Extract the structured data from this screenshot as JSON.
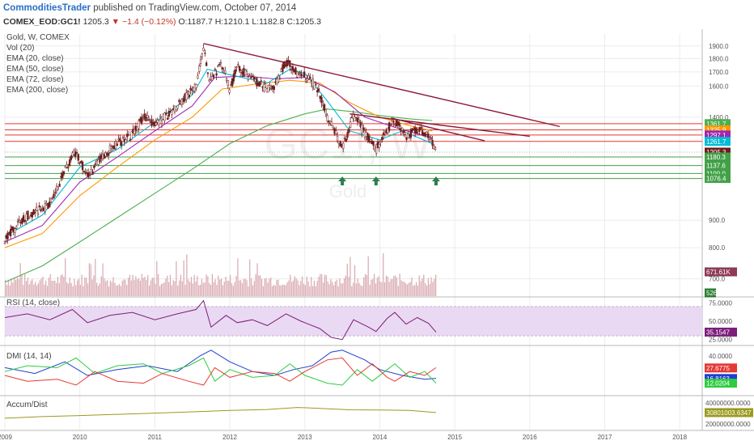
{
  "header": {
    "author": "CommoditiesTrader",
    "published": " published on TradingView.com, October 07, 2014",
    "symbol": "COMEX_EOD:GC1!",
    "last": "1205.3",
    "change": "−1.4 (−0.12%)",
    "open": "O:1187.7",
    "high": "H:1210.1",
    "low": "L:1182.8",
    "close": "C:1205.3"
  },
  "watermark": {
    "big": "GC1!, W",
    "small": "Gold"
  },
  "main_legend": [
    "Gold, W, COMEX",
    "Vol (20)",
    "EMA (20, close)",
    "EMA (50, close)",
    "EMA (72, close)",
    "EMA (200, close)"
  ],
  "rsi_legend": "RSI (14, close)",
  "dmi_legend": "DMI (14, 14)",
  "ad_legend": "Accum/Dist",
  "colors": {
    "candle": "#6b1d1d",
    "ema20": "#00bcd4",
    "ema50": "#9c27b0",
    "ema72": "#ff9800",
    "ema200": "#4caf50",
    "trendline": "#8b1a3a",
    "resistance": "#e53935",
    "support": "#43a047",
    "volume": "#d8a8b0",
    "rsi": "#7b1f7b",
    "rsi_band": "#ead9f2",
    "dmi_plus": "#2ecc40",
    "dmi_minus": "#e53935",
    "adx": "#1e3fd0",
    "accum": "#9a9a20",
    "arrow": "#2e7d4f"
  },
  "chart_data": [
    {
      "type": "candlestick",
      "title": "Gold, W, COMEX",
      "x_ticks": [
        "2009",
        "2010",
        "2011",
        "2012",
        "2013",
        "2014",
        "2015",
        "2016",
        "2017",
        "2018"
      ],
      "x_range": [
        2009.0,
        2018.3
      ],
      "y_ticks": [
        "1900.0",
        "1800.0",
        "1700.0",
        "1600.0",
        "1400.0",
        "900.0",
        "800.0",
        "700.0"
      ],
      "y_scale": "log",
      "y_range": [
        650,
        2000
      ],
      "price_path": [
        [
          2009.0,
          830
        ],
        [
          2009.3,
          920
        ],
        [
          2009.6,
          960
        ],
        [
          2009.8,
          1110
        ],
        [
          2009.95,
          1210
        ],
        [
          2010.1,
          1080
        ],
        [
          2010.3,
          1180
        ],
        [
          2010.5,
          1250
        ],
        [
          2010.7,
          1300
        ],
        [
          2010.85,
          1400
        ],
        [
          2011.0,
          1360
        ],
        [
          2011.2,
          1420
        ],
        [
          2011.4,
          1520
        ],
        [
          2011.55,
          1600
        ],
        [
          2011.65,
          1880
        ],
        [
          2011.72,
          1640
        ],
        [
          2011.9,
          1750
        ],
        [
          2012.0,
          1580
        ],
        [
          2012.1,
          1740
        ],
        [
          2012.3,
          1650
        ],
        [
          2012.5,
          1580
        ],
        [
          2012.6,
          1600
        ],
        [
          2012.75,
          1780
        ],
        [
          2012.9,
          1690
        ],
        [
          2013.0,
          1670
        ],
        [
          2013.15,
          1600
        ],
        [
          2013.3,
          1400
        ],
        [
          2013.5,
          1220
        ],
        [
          2013.65,
          1410
        ],
        [
          2013.8,
          1310
        ],
        [
          2013.95,
          1220
        ],
        [
          2014.1,
          1330
        ],
        [
          2014.2,
          1380
        ],
        [
          2014.35,
          1290
        ],
        [
          2014.5,
          1330
        ],
        [
          2014.65,
          1290
        ],
        [
          2014.75,
          1205
        ]
      ],
      "ema20": [
        [
          2009.0,
          840
        ],
        [
          2009.5,
          920
        ],
        [
          2010.0,
          1130
        ],
        [
          2010.5,
          1220
        ],
        [
          2011.0,
          1370
        ],
        [
          2011.5,
          1540
        ],
        [
          2011.7,
          1720
        ],
        [
          2012.0,
          1680
        ],
        [
          2012.5,
          1620
        ],
        [
          2012.8,
          1720
        ],
        [
          2013.0,
          1690
        ],
        [
          2013.3,
          1500
        ],
        [
          2013.6,
          1320
        ],
        [
          2014.0,
          1270
        ],
        [
          2014.3,
          1320
        ],
        [
          2014.7,
          1250
        ]
      ],
      "ema50": [
        [
          2009.0,
          820
        ],
        [
          2009.5,
          880
        ],
        [
          2010.0,
          1060
        ],
        [
          2010.5,
          1180
        ],
        [
          2011.0,
          1320
        ],
        [
          2011.5,
          1470
        ],
        [
          2011.8,
          1660
        ],
        [
          2012.2,
          1670
        ],
        [
          2012.6,
          1650
        ],
        [
          2013.0,
          1660
        ],
        [
          2013.4,
          1560
        ],
        [
          2013.8,
          1400
        ],
        [
          2014.2,
          1340
        ],
        [
          2014.7,
          1280
        ]
      ],
      "ema72": [
        [
          2009.0,
          800
        ],
        [
          2009.5,
          850
        ],
        [
          2010.0,
          1000
        ],
        [
          2010.5,
          1130
        ],
        [
          2011.0,
          1270
        ],
        [
          2011.5,
          1400
        ],
        [
          2011.9,
          1580
        ],
        [
          2012.3,
          1610
        ],
        [
          2012.8,
          1640
        ],
        [
          2013.2,
          1620
        ],
        [
          2013.6,
          1490
        ],
        [
          2014.0,
          1400
        ],
        [
          2014.4,
          1350
        ],
        [
          2014.7,
          1320
        ]
      ],
      "ema200": [
        [
          2009.0,
          690
        ],
        [
          2009.5,
          740
        ],
        [
          2010.0,
          820
        ],
        [
          2010.5,
          910
        ],
        [
          2011.0,
          1010
        ],
        [
          2011.5,
          1120
        ],
        [
          2012.0,
          1250
        ],
        [
          2012.5,
          1350
        ],
        [
          2013.0,
          1420
        ],
        [
          2013.3,
          1450
        ],
        [
          2013.7,
          1430
        ],
        [
          2014.0,
          1410
        ],
        [
          2014.4,
          1390
        ],
        [
          2014.7,
          1380
        ]
      ],
      "trendlines": [
        [
          [
            2011.65,
            1920
          ],
          [
            2016.4,
            1345
          ]
        ],
        [
          [
            2013.6,
            1420
          ],
          [
            2016.0,
            1290
          ]
        ],
        [
          [
            2014.15,
            1395
          ],
          [
            2015.4,
            1265
          ]
        ]
      ],
      "resistance_lines": [
        1361.7,
        1325.9,
        1297.1,
        1261.7
      ],
      "support_lines": [
        1180.3,
        1137.6,
        1100.0,
        1076.4
      ],
      "price_tags": [
        {
          "label": "1361.7",
          "value": 1361.7,
          "color": "#4caf50"
        },
        {
          "label": "1325.9",
          "value": 1325.9,
          "color": "#ff9800"
        },
        {
          "label": "1297.1",
          "value": 1297.1,
          "color": "#9c27b0"
        },
        {
          "label": "1261.7",
          "value": 1261.7,
          "color": "#00bcd4"
        },
        {
          "label": "1205.3",
          "value": 1205.3,
          "color": "#6b1d1d"
        },
        {
          "label": "1180.3",
          "value": 1180.3,
          "color": "#43a047"
        },
        {
          "label": "1137.6",
          "value": 1137.6,
          "color": "#43a047"
        },
        {
          "label": "1100.0",
          "value": 1100.0,
          "color": "#43a047"
        },
        {
          "label": "1076.4",
          "value": 1076.4,
          "color": "#43a047"
        }
      ],
      "support_arrows": [
        2013.5,
        2013.95,
        2014.75
      ],
      "volume_label": "671.61K",
      "volume_scale_label": "526"
    },
    {
      "type": "line",
      "title": "RSI (14, close)",
      "y_ticks": [
        "75.0000",
        "50.0000",
        "25.0000"
      ],
      "y_range": [
        18,
        82
      ],
      "band": [
        30,
        70
      ],
      "last_label": "35.1547",
      "series": [
        {
          "points": [
            [
              2009.0,
              55
            ],
            [
              2009.3,
              60
            ],
            [
              2009.6,
              52
            ],
            [
              2009.9,
              66
            ],
            [
              2010.1,
              48
            ],
            [
              2010.4,
              58
            ],
            [
              2010.7,
              62
            ],
            [
              2011.0,
              52
            ],
            [
              2011.3,
              60
            ],
            [
              2011.55,
              66
            ],
            [
              2011.65,
              78
            ],
            [
              2011.75,
              42
            ],
            [
              2011.95,
              58
            ],
            [
              2012.1,
              48
            ],
            [
              2012.3,
              52
            ],
            [
              2012.5,
              44
            ],
            [
              2012.75,
              60
            ],
            [
              2012.95,
              50
            ],
            [
              2013.2,
              40
            ],
            [
              2013.35,
              28
            ],
            [
              2013.5,
              25
            ],
            [
              2013.65,
              52
            ],
            [
              2013.85,
              42
            ],
            [
              2013.95,
              36
            ],
            [
              2014.1,
              54
            ],
            [
              2014.2,
              62
            ],
            [
              2014.35,
              46
            ],
            [
              2014.5,
              55
            ],
            [
              2014.65,
              47
            ],
            [
              2014.75,
              35
            ]
          ]
        }
      ]
    },
    {
      "type": "line",
      "title": "DMI (14, 14)",
      "y_ticks": [
        "40.0000"
      ],
      "y_range": [
        0,
        50
      ],
      "last_labels": [
        "27.6775",
        "16.8163",
        "12.0204"
      ],
      "series": [
        {
          "points": [
            [
              2009.0,
              28
            ],
            [
              2009.4,
              22
            ],
            [
              2009.8,
              34
            ],
            [
              2010.1,
              20
            ],
            [
              2010.5,
              26
            ],
            [
              2010.9,
              30
            ],
            [
              2011.3,
              24
            ],
            [
              2011.6,
              40
            ],
            [
              2011.75,
              46
            ],
            [
              2012.0,
              34
            ],
            [
              2012.3,
              24
            ],
            [
              2012.6,
              20
            ],
            [
              2012.85,
              26
            ],
            [
              2013.1,
              30
            ],
            [
              2013.35,
              44
            ],
            [
              2013.5,
              46
            ],
            [
              2013.8,
              36
            ],
            [
              2014.0,
              26
            ],
            [
              2014.3,
              20
            ],
            [
              2014.6,
              16
            ],
            [
              2014.75,
              17
            ]
          ]
        },
        {
          "points": [
            [
              2009.0,
              24
            ],
            [
              2009.3,
              30
            ],
            [
              2009.7,
              28
            ],
            [
              2009.95,
              38
            ],
            [
              2010.2,
              22
            ],
            [
              2010.5,
              30
            ],
            [
              2010.85,
              32
            ],
            [
              2011.1,
              22
            ],
            [
              2011.45,
              30
            ],
            [
              2011.65,
              38
            ],
            [
              2011.8,
              14
            ],
            [
              2012.0,
              26
            ],
            [
              2012.3,
              18
            ],
            [
              2012.6,
              20
            ],
            [
              2012.8,
              32
            ],
            [
              2013.0,
              20
            ],
            [
              2013.3,
              12
            ],
            [
              2013.5,
              10
            ],
            [
              2013.7,
              26
            ],
            [
              2013.9,
              14
            ],
            [
              2014.1,
              26
            ],
            [
              2014.2,
              32
            ],
            [
              2014.4,
              18
            ],
            [
              2014.6,
              24
            ],
            [
              2014.75,
              12
            ]
          ]
        },
        {
          "points": [
            [
              2009.0,
              20
            ],
            [
              2009.3,
              14
            ],
            [
              2009.7,
              16
            ],
            [
              2009.95,
              10
            ],
            [
              2010.2,
              24
            ],
            [
              2010.5,
              14
            ],
            [
              2010.85,
              12
            ],
            [
              2011.1,
              22
            ],
            [
              2011.45,
              14
            ],
            [
              2011.65,
              10
            ],
            [
              2011.8,
              28
            ],
            [
              2012.0,
              18
            ],
            [
              2012.3,
              24
            ],
            [
              2012.6,
              22
            ],
            [
              2012.8,
              14
            ],
            [
              2013.0,
              24
            ],
            [
              2013.3,
              36
            ],
            [
              2013.5,
              38
            ],
            [
              2013.7,
              20
            ],
            [
              2013.9,
              32
            ],
            [
              2014.1,
              18
            ],
            [
              2014.2,
              14
            ],
            [
              2014.4,
              24
            ],
            [
              2014.6,
              20
            ],
            [
              2014.75,
              28
            ]
          ]
        }
      ]
    },
    {
      "type": "line",
      "title": "Accum/Dist",
      "y_ticks": [
        "40000000.0000",
        "20000000.0000"
      ],
      "y_range": [
        14000000,
        46000000
      ],
      "last_label": "30801003.6347",
      "series": [
        {
          "points": [
            [
              2009.0,
              25500000
            ],
            [
              2009.5,
              27000000
            ],
            [
              2010.0,
              28000000
            ],
            [
              2010.5,
              29200000
            ],
            [
              2011.0,
              30300000
            ],
            [
              2011.5,
              31500000
            ],
            [
              2012.0,
              32800000
            ],
            [
              2012.5,
              33700000
            ],
            [
              2012.9,
              35600000
            ],
            [
              2013.2,
              34800000
            ],
            [
              2013.6,
              33400000
            ],
            [
              2014.0,
              33200000
            ],
            [
              2014.4,
              32800000
            ],
            [
              2014.75,
              30800000
            ]
          ]
        }
      ]
    }
  ]
}
